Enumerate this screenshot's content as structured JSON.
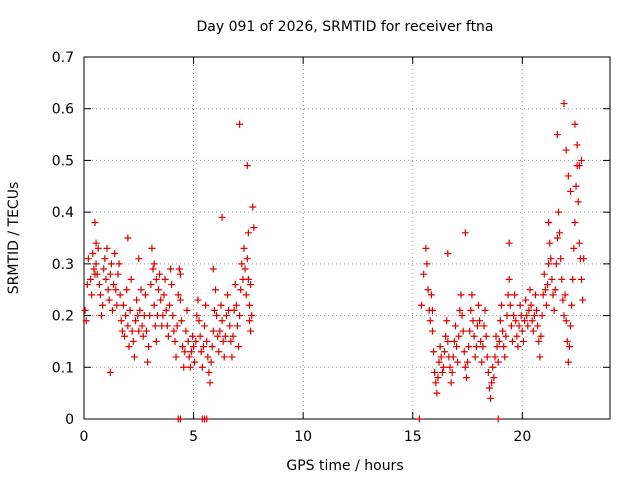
{
  "chart_data": {
    "type": "scatter",
    "title": "Day 091 of 2026, SRMTID for receiver ftna",
    "xlabel": "GPS time / hours",
    "ylabel": "SRMTID / TECUs",
    "xlim": [
      0,
      24
    ],
    "ylim": [
      0,
      0.7
    ],
    "x_ticks": [
      0,
      5,
      10,
      15,
      20
    ],
    "y_ticks": [
      0,
      0.1,
      0.2,
      0.3,
      0.4,
      0.5,
      0.6,
      0.7
    ],
    "x_tick_labels": [
      "0",
      "5",
      "10",
      "15",
      "20"
    ],
    "y_tick_labels": [
      "0",
      "0.1",
      "0.2",
      "0.3",
      "0.4",
      "0.5",
      "0.6",
      "0.7"
    ],
    "grid": true,
    "marker": "plus",
    "series": [
      {
        "name": "SRMTID",
        "color": "#e00000",
        "x": [
          0.05,
          0.1,
          0.15,
          0.2,
          0.3,
          0.35,
          0.4,
          0.45,
          0.5,
          0.55,
          0.6,
          0.65,
          0.7,
          0.75,
          0.8,
          0.85,
          0.9,
          0.95,
          1.0,
          1.05,
          1.1,
          1.15,
          1.2,
          1.25,
          1.3,
          1.35,
          1.4,
          1.45,
          1.5,
          1.55,
          1.6,
          1.65,
          1.7,
          1.75,
          1.8,
          1.85,
          1.9,
          1.95,
          2.0,
          2.05,
          2.1,
          2.15,
          2.2,
          2.25,
          2.3,
          2.35,
          2.4,
          2.45,
          2.5,
          2.55,
          2.6,
          2.65,
          2.7,
          2.75,
          2.8,
          2.85,
          2.9,
          2.95,
          3.0,
          3.05,
          3.1,
          3.15,
          3.2,
          3.25,
          3.3,
          3.35,
          3.4,
          3.45,
          3.5,
          3.55,
          3.6,
          3.65,
          3.7,
          3.75,
          3.8,
          3.85,
          3.9,
          3.95,
          4.0,
          4.05,
          4.1,
          4.15,
          4.2,
          4.25,
          4.3,
          4.35,
          4.4,
          4.45,
          4.5,
          4.55,
          4.6,
          4.65,
          4.7,
          4.75,
          4.8,
          4.85,
          4.9,
          4.95,
          5.0,
          5.05,
          5.1,
          5.15,
          5.2,
          5.25,
          5.3,
          5.35,
          5.4,
          5.45,
          5.5,
          5.55,
          5.6,
          5.65,
          5.7,
          5.75,
          5.8,
          5.85,
          5.9,
          5.95,
          6.0,
          6.05,
          6.1,
          6.15,
          6.2,
          6.25,
          6.3,
          6.35,
          6.4,
          6.45,
          6.5,
          6.55,
          6.6,
          6.65,
          6.7,
          6.75,
          6.8,
          6.85,
          6.9,
          6.95,
          7.0,
          7.05,
          7.1,
          7.15,
          7.2,
          7.25,
          7.3,
          7.35,
          7.4,
          7.45,
          7.5,
          7.55,
          7.6,
          7.65,
          7.7,
          7.75,
          0.5,
          0.55,
          1.2,
          2.0,
          2.5,
          3.2,
          3.3,
          4.4,
          5.9,
          6.3,
          7.1,
          7.45,
          7.5,
          7.55,
          7.6,
          15.4,
          15.5,
          15.6,
          15.65,
          15.7,
          15.75,
          15.8,
          15.85,
          15.9,
          15.95,
          16.0,
          16.05,
          16.1,
          16.15,
          16.2,
          16.25,
          16.3,
          16.35,
          16.4,
          16.45,
          16.5,
          16.55,
          16.6,
          16.65,
          16.7,
          16.75,
          16.8,
          16.85,
          16.9,
          16.95,
          17.0,
          17.05,
          17.1,
          17.15,
          17.2,
          17.25,
          17.3,
          17.35,
          17.4,
          17.45,
          17.5,
          17.55,
          17.6,
          17.65,
          17.7,
          17.75,
          17.8,
          17.85,
          17.9,
          17.95,
          18.0,
          18.05,
          18.1,
          18.15,
          18.2,
          18.25,
          18.3,
          18.35,
          18.4,
          18.45,
          18.5,
          18.55,
          18.6,
          18.65,
          18.7,
          18.75,
          18.8,
          18.85,
          18.9,
          18.95,
          19.0,
          19.05,
          19.1,
          19.15,
          19.2,
          19.25,
          19.3,
          19.35,
          19.4,
          19.45,
          19.5,
          19.55,
          19.6,
          19.65,
          19.7,
          19.75,
          19.8,
          19.85,
          19.9,
          19.95,
          20.0,
          20.05,
          20.1,
          20.15,
          20.2,
          20.25,
          20.3,
          20.35,
          20.4,
          20.45,
          20.5,
          20.55,
          20.6,
          20.65,
          20.7,
          20.75,
          20.8,
          20.85,
          20.9,
          20.95,
          21.0,
          21.05,
          21.1,
          21.15,
          21.2,
          21.25,
          21.3,
          21.35,
          21.4,
          21.45,
          21.5,
          21.55,
          21.6,
          21.65,
          21.7,
          21.75,
          21.8,
          21.85,
          21.9,
          21.95,
          22.0,
          22.05,
          22.1,
          22.15,
          22.2,
          22.25,
          22.3,
          22.35,
          22.4,
          22.45,
          22.5,
          22.55,
          22.6,
          22.65,
          22.7,
          22.75,
          22.8,
          15.9,
          16.6,
          17.4,
          19.4,
          21.2,
          21.6,
          21.9,
          22.0,
          22.1,
          22.2,
          22.4,
          22.5,
          22.6,
          22.7,
          4.3,
          4.4,
          5.4,
          5.5,
          5.6,
          15.3,
          18.9
        ],
        "y": [
          0.21,
          0.19,
          0.26,
          0.31,
          0.27,
          0.24,
          0.32,
          0.29,
          0.38,
          0.3,
          0.28,
          0.33,
          0.26,
          0.24,
          0.2,
          0.22,
          0.29,
          0.31,
          0.27,
          0.33,
          0.25,
          0.23,
          0.28,
          0.3,
          0.21,
          0.26,
          0.32,
          0.25,
          0.22,
          0.28,
          0.3,
          0.24,
          0.19,
          0.17,
          0.22,
          0.16,
          0.2,
          0.25,
          0.18,
          0.14,
          0.21,
          0.27,
          0.17,
          0.15,
          0.12,
          0.19,
          0.23,
          0.2,
          0.17,
          0.21,
          0.25,
          0.18,
          0.16,
          0.2,
          0.24,
          0.17,
          0.11,
          0.14,
          0.2,
          0.26,
          0.33,
          0.29,
          0.22,
          0.18,
          0.15,
          0.2,
          0.25,
          0.28,
          0.23,
          0.18,
          0.2,
          0.24,
          0.27,
          0.21,
          0.18,
          0.16,
          0.22,
          0.29,
          0.26,
          0.2,
          0.17,
          0.15,
          0.12,
          0.18,
          0.24,
          0.29,
          0.23,
          0.19,
          0.14,
          0.1,
          0.13,
          0.17,
          0.21,
          0.15,
          0.12,
          0.1,
          0.13,
          0.16,
          0.14,
          0.11,
          0.15,
          0.2,
          0.23,
          0.19,
          0.16,
          0.13,
          0.1,
          0.14,
          0.18,
          0.22,
          0.15,
          0.12,
          0.09,
          0.07,
          0.11,
          0.14,
          0.17,
          0.21,
          0.25,
          0.2,
          0.16,
          0.13,
          0.17,
          0.22,
          0.19,
          0.15,
          0.12,
          0.16,
          0.2,
          0.24,
          0.21,
          0.18,
          0.15,
          0.12,
          0.16,
          0.21,
          0.26,
          0.22,
          0.18,
          0.14,
          0.2,
          0.25,
          0.3,
          0.27,
          0.33,
          0.29,
          0.24,
          0.31,
          0.27,
          0.22,
          0.26,
          0.2,
          0.41,
          0.37,
          0.28,
          0.34,
          0.09,
          0.35,
          0.31,
          0.3,
          0.27,
          0.28,
          0.29,
          0.39,
          0.57,
          0.49,
          0.36,
          0.19,
          0.17,
          0.22,
          0.28,
          0.33,
          0.3,
          0.25,
          0.21,
          0.19,
          0.24,
          0.17,
          0.13,
          0.09,
          0.07,
          0.05,
          0.08,
          0.11,
          0.14,
          0.12,
          0.09,
          0.1,
          0.13,
          0.16,
          0.19,
          0.15,
          0.12,
          0.1,
          0.07,
          0.09,
          0.12,
          0.15,
          0.18,
          0.14,
          0.11,
          0.16,
          0.21,
          0.24,
          0.2,
          0.17,
          0.13,
          0.1,
          0.08,
          0.11,
          0.14,
          0.17,
          0.21,
          0.24,
          0.19,
          0.16,
          0.12,
          0.14,
          0.18,
          0.22,
          0.19,
          0.15,
          0.11,
          0.14,
          0.18,
          0.21,
          0.16,
          0.12,
          0.09,
          0.06,
          0.04,
          0.07,
          0.1,
          0.08,
          0.12,
          0.16,
          0.14,
          0.11,
          0.15,
          0.19,
          0.22,
          0.17,
          0.14,
          0.12,
          0.16,
          0.2,
          0.24,
          0.27,
          0.22,
          0.18,
          0.15,
          0.2,
          0.24,
          0.19,
          0.16,
          0.14,
          0.18,
          0.22,
          0.2,
          0.17,
          0.15,
          0.19,
          0.23,
          0.2,
          0.18,
          0.21,
          0.25,
          0.22,
          0.19,
          0.17,
          0.2,
          0.24,
          0.21,
          0.18,
          0.15,
          0.12,
          0.16,
          0.2,
          0.24,
          0.28,
          0.25,
          0.22,
          0.26,
          0.3,
          0.34,
          0.31,
          0.27,
          0.24,
          0.21,
          0.25,
          0.3,
          0.35,
          0.4,
          0.36,
          0.31,
          0.27,
          0.23,
          0.2,
          0.24,
          0.19,
          0.15,
          0.11,
          0.14,
          0.18,
          0.22,
          0.27,
          0.33,
          0.38,
          0.45,
          0.49,
          0.42,
          0.34,
          0.31,
          0.27,
          0.23,
          0.31,
          0.21,
          0.32,
          0.36,
          0.34,
          0.38,
          0.55,
          0.61,
          0.52,
          0.47,
          0.44,
          0.57,
          0.53,
          0.49,
          0.5,
          0.0,
          0.0,
          0.0,
          0.0,
          0.0,
          0.0,
          0.0
        ]
      }
    ]
  }
}
